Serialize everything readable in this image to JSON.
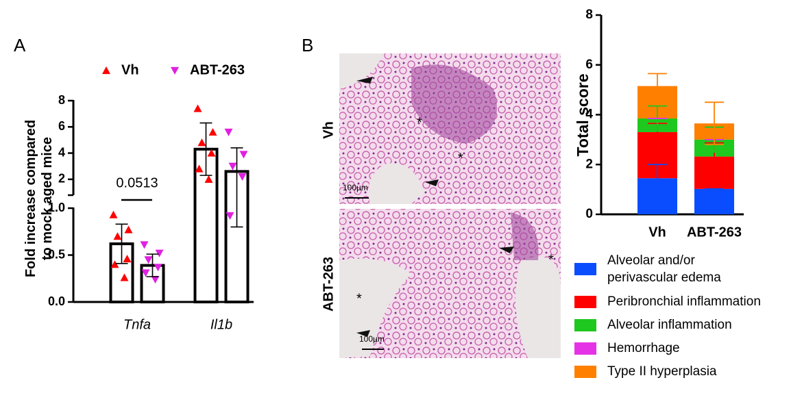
{
  "panel_labels": [
    "A",
    "B"
  ],
  "images": {
    "rows": [
      "Vh",
      "ABT-263"
    ],
    "scale_bar": "100µm"
  },
  "chart_data": [
    {
      "type": "broken_bar",
      "ylabel": [
        "Fold increase compared",
        "to mock aged mice"
      ],
      "categories": [
        "Tnfa",
        "Il1b"
      ],
      "annotation": "0.0513",
      "segments": [
        {
          "ylim": [
            0,
            1
          ],
          "yticks": [
            {
              "value": 0,
              "label": "0.0"
            },
            0.5,
            {
              "value": 1,
              "label": "1.0"
            }
          ]
        },
        {
          "ylim": [
            1,
            8
          ],
          "yticks": [
            2,
            4,
            6,
            8
          ]
        }
      ],
      "series": [
        {
          "name": "Vh",
          "color": "#ff0000",
          "marker": "up",
          "values": [
            0.62,
            4.3
          ],
          "errors": [
            0.21,
            2.0
          ],
          "points": [
            [
              0.93,
              0.77,
              0.7,
              0.46,
              0.4,
              0.26
            ],
            [
              7.4,
              5.6,
              4.8,
              4.0,
              2.8,
              2.0
            ]
          ]
        },
        {
          "name": "ABT-263",
          "color": "#e020e0",
          "marker": "down",
          "values": [
            0.39,
            2.6
          ],
          "errors": [
            0.12,
            1.8
          ],
          "points": [
            [
              0.61,
              0.52,
              0.45,
              0.37,
              0.31,
              0.24
            ],
            [
              5.6,
              3.9,
              3.0,
              2.2,
              0.92
            ]
          ]
        }
      ]
    },
    {
      "type": "stacked_bar",
      "ylabel": "Total score",
      "categories": [
        "Vh",
        "ABT-263"
      ],
      "ylim": [
        0,
        8
      ],
      "yticks": [
        0,
        2,
        4,
        6,
        8
      ],
      "series": [
        {
          "name": "Alveolar and/or perivascular edema",
          "color": "#0a4dff",
          "values": [
            1.45,
            1.02
          ],
          "errors": [
            0.55,
            0
          ]
        },
        {
          "name": "Peribronchial inflammation",
          "color": "#ff0000",
          "values": [
            1.85,
            1.3
          ],
          "errors": [
            0.35,
            0.55
          ]
        },
        {
          "name": "Alveolar inflammation",
          "color": "#1ec81e",
          "values": [
            0.55,
            0.68
          ],
          "errors": [
            0.5,
            0.5
          ]
        },
        {
          "name": "Hemorrhage",
          "color": "#e632e6",
          "values": [
            0,
            0
          ],
          "errors": [
            0,
            0
          ]
        },
        {
          "name": "Type II hyperplasia",
          "color": "#ff8000",
          "values": [
            1.3,
            0.65
          ],
          "errors": [
            0.5,
            0.85
          ]
        }
      ]
    }
  ]
}
